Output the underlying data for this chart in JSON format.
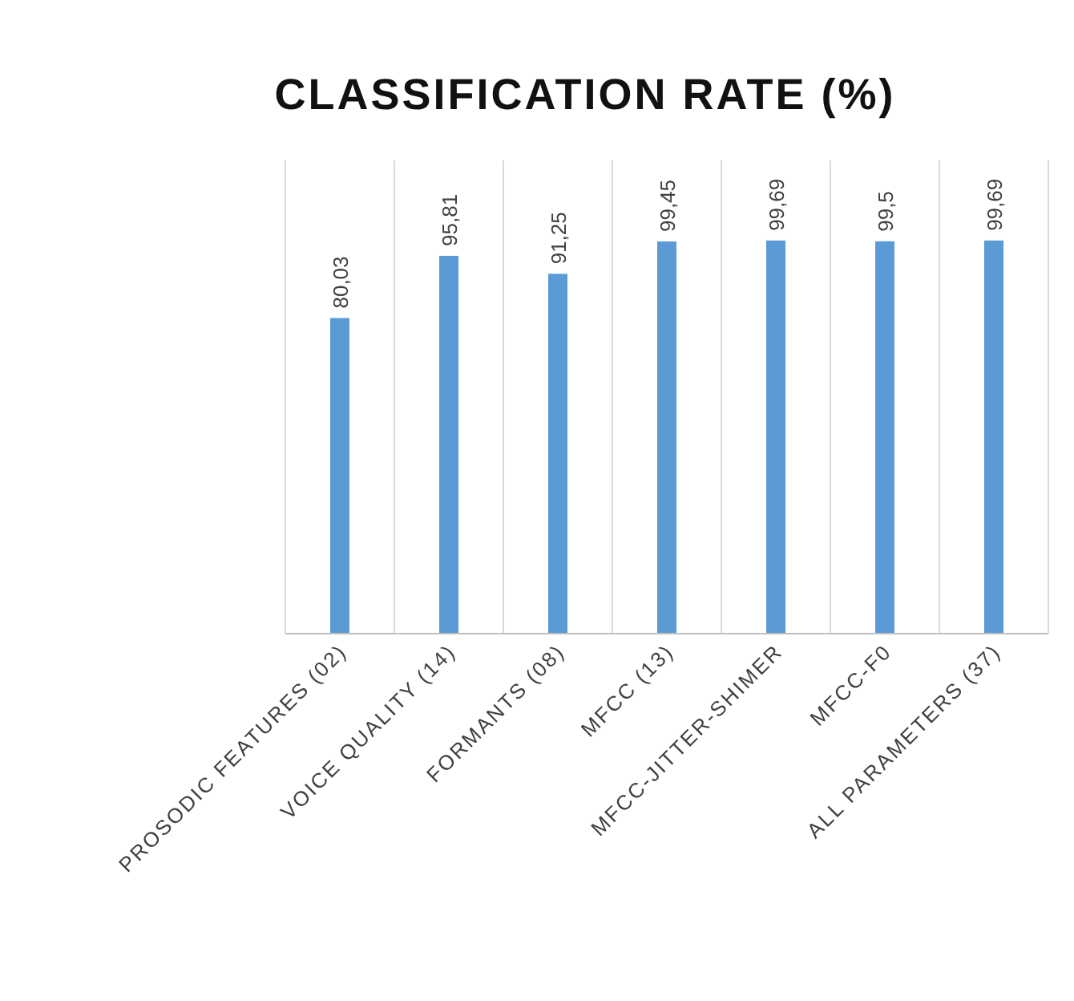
{
  "chart_data": {
    "type": "bar",
    "title": "CLASSIFICATION  RATE  (%)",
    "categories": [
      "PROSODIC FEATURES (02)",
      "VOICE QUALITY (14)",
      "FORMANTS (08)",
      "MFCC (13)",
      "MFCC-JITTER-SHIMER",
      "MFCC-F0",
      "ALL PARAMETERS (37)"
    ],
    "values": [
      80.03,
      95.81,
      91.25,
      99.45,
      99.69,
      99.5,
      99.69
    ],
    "value_labels": [
      "80,03",
      "95,81",
      "91,25",
      "99,45",
      "99,69",
      "99,5",
      "99,69"
    ],
    "color": "#5b9bd5",
    "ylim": [
      0,
      120
    ],
    "tick_labels": "x",
    "grid": "x"
  }
}
